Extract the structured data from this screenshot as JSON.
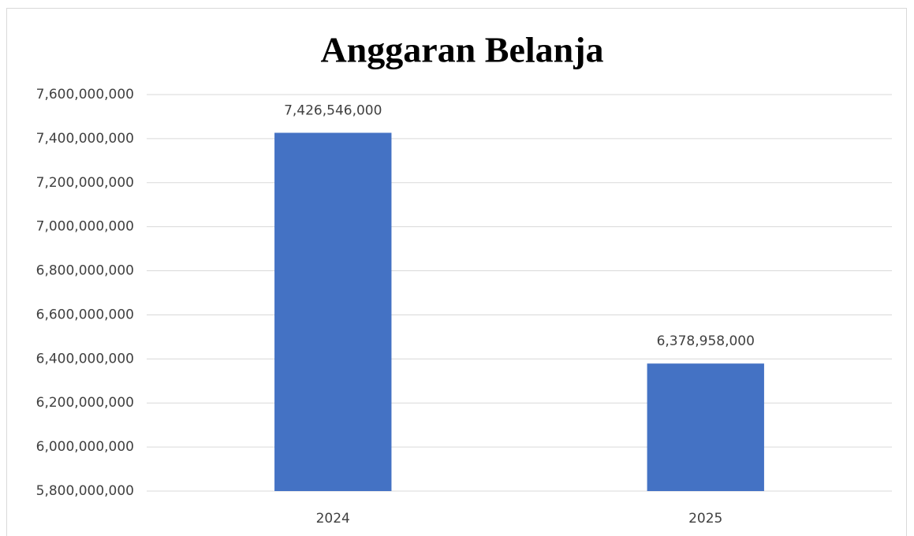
{
  "chart_data": {
    "type": "bar",
    "title": "Anggaran Belanja",
    "categories": [
      "2024",
      "2025"
    ],
    "values": [
      7426546000,
      6378958000
    ],
    "value_labels": [
      "7,426,546,000",
      "6,378,958,000"
    ],
    "color": "#4472c4",
    "ylim": [
      5800000000,
      7600000000
    ],
    "yticks": [
      {
        "value": 5800000000,
        "label": "5,800,000,000"
      },
      {
        "value": 6000000000,
        "label": "6,000,000,000"
      },
      {
        "value": 6200000000,
        "label": "6,200,000,000"
      },
      {
        "value": 6400000000,
        "label": "6,400,000,000"
      },
      {
        "value": 6600000000,
        "label": "6,600,000,000"
      },
      {
        "value": 6800000000,
        "label": "6,800,000,000"
      },
      {
        "value": 7000000000,
        "label": "7,000,000,000"
      },
      {
        "value": 7200000000,
        "label": "7,200,000,000"
      },
      {
        "value": 7400000000,
        "label": "7,400,000,000"
      },
      {
        "value": 7600000000,
        "label": "7,600,000,000"
      }
    ],
    "grid": true
  }
}
